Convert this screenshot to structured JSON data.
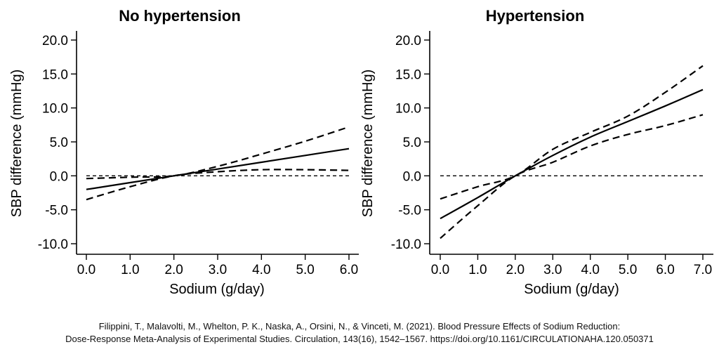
{
  "chart_data": [
    {
      "type": "line",
      "title": "No hypertension",
      "xlabel": "Sodium (g/day)",
      "ylabel": "SBP difference (mmHg)",
      "xlim": [
        0,
        6
      ],
      "ylim": [
        -10,
        20
      ],
      "xticks": [
        0,
        1,
        2,
        3,
        4,
        5,
        6
      ],
      "xtick_labels": [
        "0.0",
        "1.0",
        "2.0",
        "3.0",
        "4.0",
        "5.0",
        "6.0"
      ],
      "yticks": [
        -10,
        -5,
        0,
        5,
        10,
        15,
        20
      ],
      "ytick_labels": [
        "-10.0",
        "-5.0",
        "0.0",
        "5.0",
        "10.0",
        "15.0",
        "20.0"
      ],
      "reference_line_y": 0,
      "series": [
        {
          "name": "estimate",
          "style": "solid",
          "x": [
            0,
            1,
            2,
            3,
            4,
            5,
            6
          ],
          "y": [
            -2.0,
            -1.0,
            0.0,
            1.0,
            2.0,
            3.0,
            4.0
          ]
        },
        {
          "name": "upper 95% CI",
          "style": "dashed",
          "x": [
            0,
            1,
            2,
            3,
            4,
            5,
            6
          ],
          "y": [
            -0.4,
            -0.2,
            0.0,
            1.4,
            3.2,
            5.1,
            7.2
          ]
        },
        {
          "name": "lower 95% CI",
          "style": "dashed",
          "x": [
            0,
            1,
            2,
            3,
            4,
            5,
            6
          ],
          "y": [
            -3.5,
            -1.6,
            0.0,
            0.6,
            0.9,
            0.9,
            0.8
          ]
        }
      ]
    },
    {
      "type": "line",
      "title": "Hypertension",
      "xlabel": "Sodium (g/day)",
      "ylabel": "SBP difference (mmHg)",
      "xlim": [
        0,
        7
      ],
      "ylim": [
        -10,
        20
      ],
      "xticks": [
        0,
        1,
        2,
        3,
        4,
        5,
        6,
        7
      ],
      "xtick_labels": [
        "0.0",
        "1.0",
        "2.0",
        "3.0",
        "4.0",
        "5.0",
        "6.0",
        "7.0"
      ],
      "yticks": [
        -10,
        -5,
        0,
        5,
        10,
        15,
        20
      ],
      "ytick_labels": [
        "-10.0",
        "-5.0",
        "0.0",
        "5.0",
        "10.0",
        "15.0",
        "20.0"
      ],
      "reference_line_y": 0,
      "series": [
        {
          "name": "estimate",
          "style": "solid",
          "x": [
            0,
            1,
            2,
            3,
            4,
            5,
            6,
            7
          ],
          "y": [
            -6.3,
            -3.2,
            0.0,
            3.0,
            5.7,
            8.0,
            10.3,
            12.7
          ]
        },
        {
          "name": "upper 95% CI",
          "style": "dashed",
          "x": [
            0,
            1,
            2,
            3,
            4,
            5,
            6,
            7
          ],
          "y": [
            -3.4,
            -1.6,
            0.0,
            3.9,
            6.4,
            8.8,
            12.3,
            16.2
          ]
        },
        {
          "name": "lower 95% CI",
          "style": "dashed",
          "x": [
            0,
            1,
            2,
            3,
            4,
            5,
            6,
            7
          ],
          "y": [
            -9.2,
            -4.4,
            0.0,
            2.0,
            4.4,
            6.1,
            7.4,
            9.0
          ]
        }
      ]
    }
  ],
  "citation": {
    "line1": "Filippini, T., Malavolti, M., Whelton, P. K., Naska, A., Orsini, N., & Vinceti, M. (2021). Blood Pressure Effects of Sodium Reduction:",
    "line2": "Dose-Response Meta-Analysis of Experimental Studies. Circulation, 143(16), 1542–1567. https://doi.org/10.1161/CIRCULATIONAHA.120.050371"
  }
}
